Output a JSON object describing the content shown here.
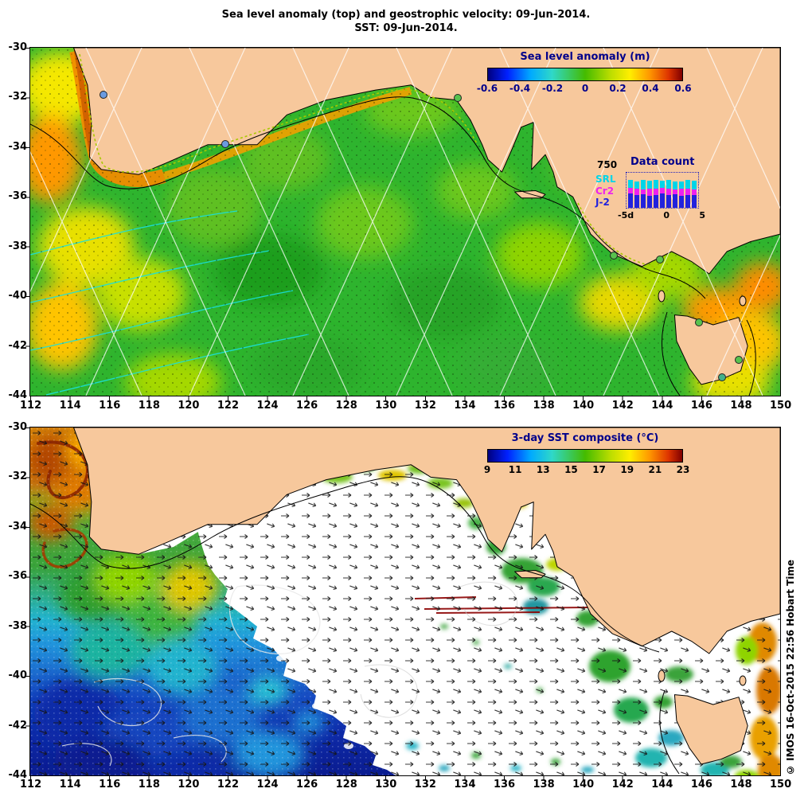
{
  "title": {
    "line1": "Sea level anomaly (top) and geostrophic velocity: 09-Jun-2014.",
    "line2": "SST: 09-Jun-2014."
  },
  "watermark": "© IMOS 16-Oct-2015 22:56 Hobart Time",
  "chart_data": [
    {
      "type": "heatmap",
      "name": "sea-level-anomaly-map",
      "title": "Sea level anomaly (m)",
      "date": "09-Jun-2014",
      "xlim": [
        112,
        150
      ],
      "ylim": [
        -44,
        -30
      ],
      "x_ticks": [
        112,
        114,
        116,
        118,
        120,
        122,
        124,
        126,
        128,
        130,
        132,
        134,
        136,
        138,
        140,
        142,
        144,
        146,
        148,
        150
      ],
      "y_ticks": [
        -30,
        -32,
        -34,
        -36,
        -38,
        -40,
        -42,
        -44
      ],
      "colorbar": {
        "title": "Sea level anomaly (m)",
        "ticks": [
          -0.6,
          -0.4,
          -0.2,
          0,
          0.2,
          0.4,
          0.6
        ],
        "range": [
          -0.6,
          0.6
        ],
        "units": "m"
      },
      "overlays": [
        "geostrophic velocity vectors",
        "altimeter ground tracks",
        "coastal station markers"
      ]
    },
    {
      "type": "heatmap",
      "name": "sst-map",
      "title": "3-day SST composite (°C)",
      "date": "09-Jun-2014",
      "xlim": [
        112,
        150
      ],
      "ylim": [
        -44,
        -30
      ],
      "x_ticks": [
        112,
        114,
        116,
        118,
        120,
        122,
        124,
        126,
        128,
        130,
        132,
        134,
        136,
        138,
        140,
        142,
        144,
        146,
        148,
        150
      ],
      "y_ticks": [
        -30,
        -32,
        -34,
        -36,
        -38,
        -40,
        -42,
        -44
      ],
      "colorbar": {
        "title": "3-day SST composite (°C)",
        "ticks": [
          9,
          11,
          13,
          15,
          17,
          19,
          21,
          23
        ],
        "range": [
          9,
          23
        ],
        "units": "°C"
      },
      "overlays": [
        "geostrophic velocity vectors",
        "sea level contours"
      ]
    },
    {
      "type": "bar",
      "name": "data-count-inset",
      "title": "Data count",
      "y_max": 750,
      "x_ticks": [
        "-5d",
        "0",
        "5"
      ],
      "series": [
        {
          "name": "SRL",
          "color": "#00d5e8",
          "values": [
            180,
            160,
            190,
            170,
            180,
            160,
            190,
            170,
            160,
            180,
            190
          ]
        },
        {
          "name": "Cr2",
          "color": "#ee22ee",
          "values": [
            120,
            140,
            110,
            150,
            130,
            120,
            140,
            110,
            150,
            130,
            120
          ]
        },
        {
          "name": "J-2",
          "color": "#2222dd",
          "values": [
            300,
            270,
            290,
            260,
            280,
            300,
            270,
            290,
            260,
            280,
            270
          ]
        }
      ]
    }
  ]
}
